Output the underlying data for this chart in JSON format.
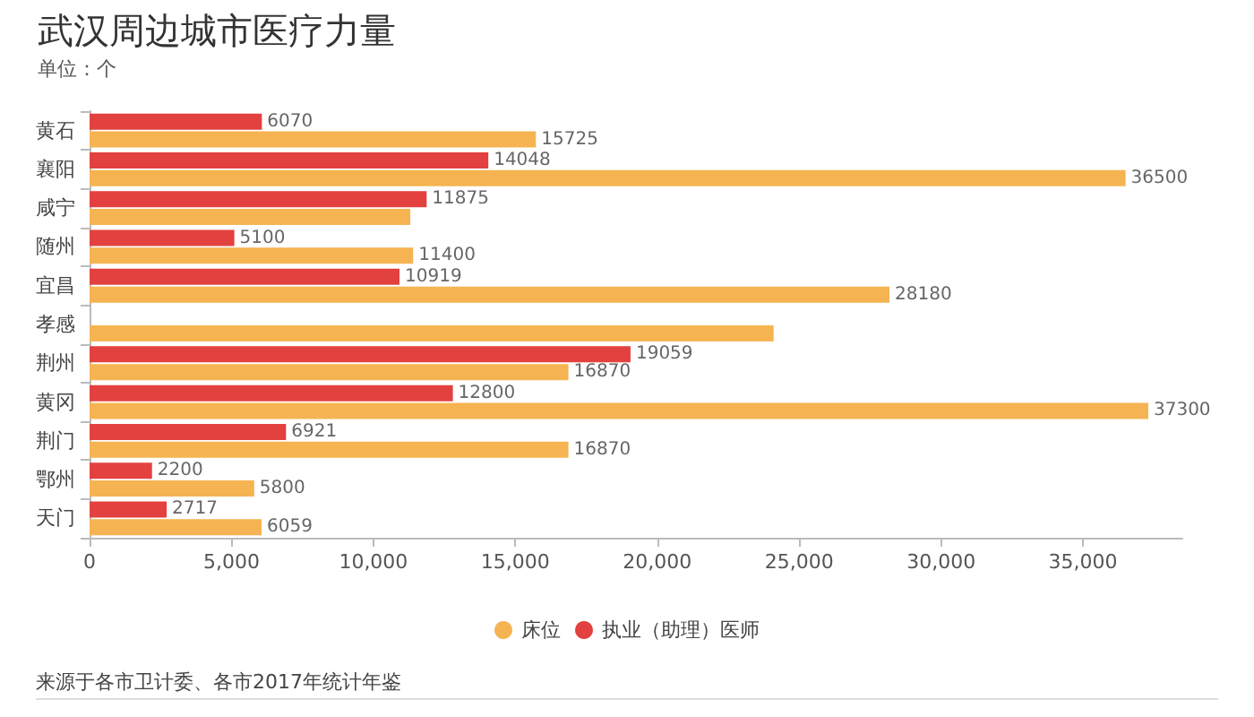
{
  "chart_data": {
    "type": "bar",
    "orientation": "horizontal",
    "title": "武汉周边城市医疗力量",
    "subtitle": "单位：个",
    "categories": [
      "黄石",
      "襄阳",
      "咸宁",
      "随州",
      "宜昌",
      "孝感",
      "荆州",
      "黄冈",
      "荆门",
      "鄂州",
      "天门"
    ],
    "series": [
      {
        "name": "执业（助理）医师",
        "color": "#e2413f",
        "values": [
          6070,
          14048,
          11875,
          5100,
          10919,
          null,
          19059,
          12800,
          6921,
          2200,
          2717
        ],
        "value_labels": [
          "6070",
          "14048",
          "11875",
          "5100",
          "10919",
          null,
          "19059",
          "12800",
          "6921",
          "2200",
          "2717"
        ]
      },
      {
        "name": "床位",
        "color": "#f5b451",
        "values": [
          15725,
          36500,
          11300,
          11400,
          28180,
          24100,
          16870,
          37300,
          16870,
          5800,
          6059
        ],
        "value_labels": [
          "15725",
          "36500",
          null,
          "11400",
          "28180",
          null,
          "16870",
          "37300",
          "16870",
          "5800",
          "6059"
        ]
      }
    ],
    "xlim": [
      0,
      38500
    ],
    "xticks": [
      {
        "value": 0,
        "label": "0"
      },
      {
        "value": 5000,
        "label": "5,000"
      },
      {
        "value": 10000,
        "label": "10,000"
      },
      {
        "value": 15000,
        "label": "15,000"
      },
      {
        "value": 20000,
        "label": "20,000"
      },
      {
        "value": 25000,
        "label": "25,000"
      },
      {
        "value": 30000,
        "label": "30,000"
      },
      {
        "value": 35000,
        "label": "35,000"
      }
    ],
    "grid": false,
    "legend": "bottom",
    "annotations": [
      "来源于各市卫计委、各市2017年统计年鉴"
    ]
  }
}
